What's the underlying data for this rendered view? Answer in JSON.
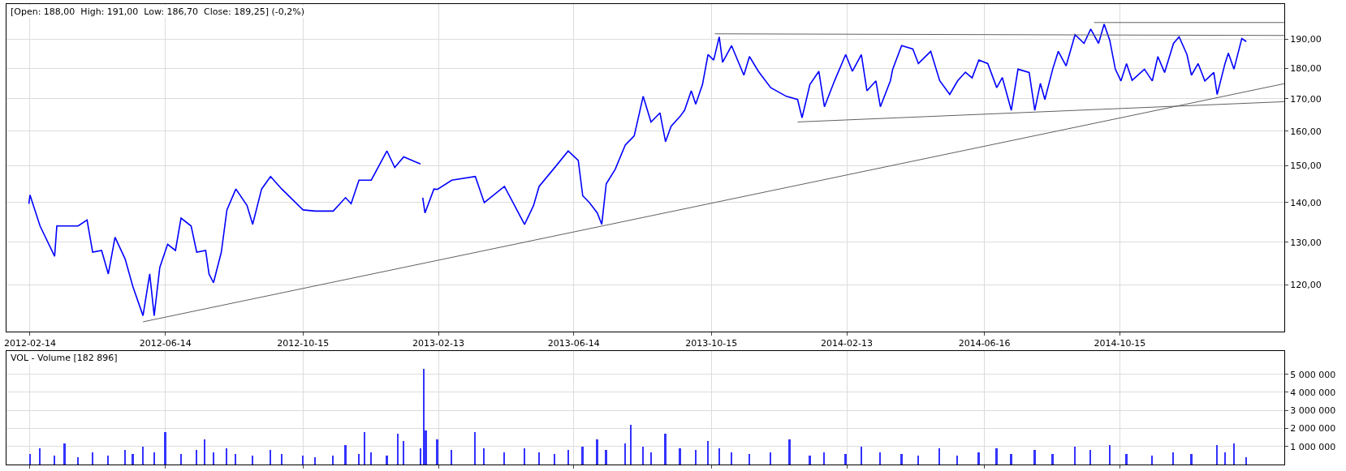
{
  "chart_data": [
    {
      "type": "line",
      "title": "[Open: 188,00  High: 191,00  Low: 186,70  Close: 189,25] (-0,2%)",
      "log": true,
      "grid": true,
      "xlim": [
        "2012-01-24",
        "2015-03-11"
      ],
      "xticks": [
        "2012-02-14",
        "2012-06-14",
        "2012-10-15",
        "2013-02-13",
        "2013-06-14",
        "2013-10-15",
        "2014-02-13",
        "2014-06-16",
        "2014-10-15"
      ],
      "ylim": [
        110,
        203
      ],
      "yticks": [
        {
          "value": 120,
          "label": "120,00"
        },
        {
          "value": 130,
          "label": "130,00"
        },
        {
          "value": 140,
          "label": "140,00"
        },
        {
          "value": 150,
          "label": "150,00"
        },
        {
          "value": 160,
          "label": "160,00"
        },
        {
          "value": 170,
          "label": "170,00"
        },
        {
          "value": 180,
          "label": "180,00"
        },
        {
          "value": 190,
          "label": "190,00"
        }
      ],
      "series": [
        {
          "color": "#0000ff",
          "x": [
            "2012-02-13",
            "2012-02-14",
            "2012-02-23",
            "2012-03-07",
            "2012-03-09",
            "2012-03-28",
            "2012-04-05",
            "2012-04-10",
            "2012-04-18",
            "2012-04-24",
            "2012-04-30",
            "2012-05-09",
            "2012-05-16",
            "2012-05-25",
            "2012-05-31",
            "2012-06-04",
            "2012-06-09",
            "2012-06-16",
            "2012-06-23",
            "2012-06-28",
            "2012-07-07",
            "2012-07-12",
            "2012-07-20",
            "2012-07-23",
            "2012-07-27",
            "2012-08-03",
            "2012-08-08",
            "2012-08-16",
            "2012-08-26",
            "2012-08-31",
            "2012-09-08",
            "2012-09-16",
            "2012-09-26",
            "2012-10-15",
            "2012-10-26",
            "2012-11-11",
            "2012-11-22",
            "2012-11-27",
            "2012-12-04",
            "2012-12-15",
            "2012-12-29",
            "2013-01-05",
            "2013-01-13",
            "2013-01-28",
            "2013-01-29",
            "2013-01-30",
            "2013-02-01",
            "2013-02-09",
            "2013-02-12",
            "2013-02-25",
            "2013-03-18",
            "2013-03-26",
            "2013-04-13",
            "2013-05-01",
            "2013-05-09",
            "2013-05-14",
            "2013-05-28",
            "2013-06-09",
            "2013-06-18",
            "2013-06-22",
            "2013-06-28",
            "2013-07-05",
            "2013-07-09",
            "2013-07-13",
            "2013-07-21",
            "2013-07-30",
            "2013-08-07",
            "2013-08-15",
            "2013-08-22",
            "2013-08-30",
            "2013-09-04",
            "2013-09-09",
            "2013-09-17",
            "2013-09-21",
            "2013-09-27",
            "2013-10-01",
            "2013-10-07",
            "2013-10-12",
            "2013-10-17",
            "2013-10-22",
            "2013-10-25",
            "2013-11-02",
            "2013-11-13",
            "2013-11-18",
            "2013-11-26",
            "2013-12-07",
            "2013-12-21",
            "2013-12-31",
            "2014-01-04",
            "2014-01-11",
            "2014-01-19",
            "2014-01-24",
            "2014-02-02",
            "2014-02-12",
            "2014-02-18",
            "2014-02-26",
            "2014-03-03",
            "2014-03-11",
            "2014-03-15",
            "2014-03-24",
            "2014-03-26",
            "2014-04-03",
            "2014-04-13",
            "2014-04-18",
            "2014-04-29",
            "2014-05-07",
            "2014-05-16",
            "2014-05-23",
            "2014-05-30",
            "2014-06-05",
            "2014-06-11",
            "2014-06-19",
            "2014-06-27",
            "2014-07-02",
            "2014-07-10",
            "2014-07-16",
            "2014-07-26",
            "2014-07-31",
            "2014-08-05",
            "2014-08-09",
            "2014-08-16",
            "2014-08-21",
            "2014-08-28",
            "2014-09-05",
            "2014-09-13",
            "2014-09-19",
            "2014-09-26",
            "2014-10-01",
            "2014-10-06",
            "2014-10-11",
            "2014-10-16",
            "2014-10-21",
            "2014-10-26",
            "2014-11-06",
            "2014-11-13",
            "2014-11-18",
            "2014-11-24",
            "2014-12-02",
            "2014-12-07",
            "2014-12-14",
            "2014-12-18",
            "2014-12-24",
            "2014-12-30",
            "2015-01-07",
            "2015-01-10",
            "2015-01-17",
            "2015-01-20",
            "2015-01-25",
            "2015-02-01",
            "2015-02-05"
          ],
          "values": [
            139.7,
            142,
            134,
            126.6,
            134,
            134,
            135.5,
            127.6,
            128,
            122.5,
            131.2,
            126,
            119.6,
            113.3,
            122.5,
            113.3,
            124,
            129.5,
            128,
            136,
            134,
            127.6,
            128,
            122.5,
            120.5,
            127.6,
            138.1,
            143.6,
            139.2,
            134.4,
            143.6,
            147,
            143.6,
            138.1,
            137.8,
            137.8,
            141.3,
            139.7,
            146,
            146,
            154.2,
            149.5,
            152.5,
            150.5,
            null,
            141.3,
            137.3,
            143.6,
            143.5,
            146,
            147,
            140,
            144.3,
            134.4,
            139.2,
            144.3,
            149.5,
            154.2,
            151.5,
            141.8,
            140,
            137.3,
            134.4,
            145,
            149,
            155.9,
            158.6,
            170.8,
            162.8,
            165.6,
            156.9,
            161.5,
            164.5,
            166.4,
            172.6,
            168.3,
            174.6,
            184.7,
            182.8,
            190.9,
            182,
            187.8,
            177.7,
            184,
            179,
            173.6,
            170.8,
            169.8,
            164.1,
            174.6,
            179,
            167.5,
            175.8,
            184.7,
            179,
            184.7,
            172.6,
            175.8,
            167.5,
            175.9,
            179.7,
            187.8,
            186.6,
            181.6,
            185.8,
            175.9,
            171.4,
            175.8,
            178.7,
            176.8,
            182.8,
            181.6,
            173.6,
            176.9,
            166.4,
            179.7,
            178.6,
            166.4,
            175,
            169.8,
            179.7,
            185.8,
            180.8,
            191.7,
            188.6,
            193.7,
            188.6,
            195.5,
            189.7,
            179.7,
            175.8,
            181.6,
            176,
            179.7,
            175.8,
            184,
            178.6,
            188.6,
            190.9,
            184.7,
            177.7,
            181.6,
            175.8,
            178.6,
            171.4,
            181.6,
            185.2,
            179.7,
            190.3,
            189.25
          ]
        },
        {
          "type": "line",
          "color": "#606060",
          "x": [
            "2012-05-25",
            "2015-03-11"
          ],
          "values": [
            112,
            174.9
          ]
        },
        {
          "type": "line",
          "color": "#606060",
          "x": [
            "2013-10-18",
            "2015-03-11"
          ],
          "values": [
            192,
            191.4
          ]
        },
        {
          "type": "line",
          "color": "#606060",
          "x": [
            "2014-09-22",
            "2015-03-11"
          ],
          "values": [
            196.1,
            196.1
          ]
        },
        {
          "type": "line",
          "color": "#606060",
          "x": [
            "2013-12-31",
            "2015-03-11"
          ],
          "values": [
            162.8,
            169.1
          ]
        }
      ]
    },
    {
      "type": "bar",
      "title": "VOL - Volume [182 896]",
      "grid": true,
      "tick_labels": "y",
      "xlim": [
        "2012-01-24",
        "2015-03-11"
      ],
      "xticks": [
        "2012-02-14",
        "2012-06-14",
        "2012-10-15",
        "2013-02-13",
        "2013-06-14",
        "2013-10-15",
        "2014-02-13",
        "2014-06-16",
        "2014-10-15"
      ],
      "ylim": [
        0,
        6300000
      ],
      "yticks": [
        {
          "value": 1000000,
          "label": "1 000 000"
        },
        {
          "value": 2000000,
          "label": "2 000 000"
        },
        {
          "value": 3000000,
          "label": "3 000 000"
        },
        {
          "value": 4000000,
          "label": "4 000 000"
        },
        {
          "value": 5000000,
          "label": "5 000 000"
        }
      ],
      "series": [
        {
          "color": "#3333ff",
          "x": [
            "2012-02-14",
            "2012-02-23",
            "2012-03-07",
            "2012-03-16",
            "2012-03-28",
            "2012-04-10",
            "2012-04-24",
            "2012-05-09",
            "2012-05-16",
            "2012-05-25",
            "2012-06-04",
            "2012-06-14",
            "2012-06-28",
            "2012-07-12",
            "2012-07-19",
            "2012-07-27",
            "2012-08-08",
            "2012-08-16",
            "2012-08-31",
            "2012-09-16",
            "2012-09-26",
            "2012-10-15",
            "2012-10-26",
            "2012-11-11",
            "2012-11-22",
            "2012-12-04",
            "2012-12-09",
            "2012-12-15",
            "2012-12-29",
            "2013-01-08",
            "2013-01-13",
            "2013-01-28",
            "2013-01-31",
            "2013-02-02",
            "2013-02-12",
            "2013-02-25",
            "2013-03-18",
            "2013-03-26",
            "2013-04-13",
            "2013-05-01",
            "2013-05-14",
            "2013-05-28",
            "2013-06-09",
            "2013-06-22",
            "2013-07-05",
            "2013-07-13",
            "2013-07-30",
            "2013-08-04",
            "2013-08-15",
            "2013-08-22",
            "2013-09-04",
            "2013-09-17",
            "2013-10-01",
            "2013-10-12",
            "2013-10-22",
            "2013-11-02",
            "2013-11-18",
            "2013-12-07",
            "2013-12-24",
            "2014-01-11",
            "2014-01-24",
            "2014-02-12",
            "2014-02-26",
            "2014-03-15",
            "2014-04-03",
            "2014-04-18",
            "2014-05-07",
            "2014-05-23",
            "2014-06-11",
            "2014-06-27",
            "2014-07-10",
            "2014-07-31",
            "2014-08-16",
            "2014-09-05",
            "2014-09-19",
            "2014-10-06",
            "2014-10-21",
            "2014-11-13",
            "2014-12-02",
            "2014-12-18",
            "2015-01-10",
            "2015-01-17",
            "2015-01-25",
            "2015-02-05"
          ],
          "values": [
            600000,
            900000,
            500000,
            1200000,
            400000,
            700000,
            500000,
            800000,
            600000,
            1000000,
            700000,
            1800000,
            600000,
            800000,
            1400000,
            700000,
            900000,
            600000,
            500000,
            800000,
            600000,
            500000,
            400000,
            500000,
            1100000,
            600000,
            1800000,
            700000,
            500000,
            1700000,
            1300000,
            900000,
            5300000,
            1900000,
            1400000,
            800000,
            1800000,
            900000,
            700000,
            900000,
            700000,
            600000,
            800000,
            1000000,
            1400000,
            800000,
            1200000,
            2200000,
            1000000,
            700000,
            1700000,
            900000,
            800000,
            1300000,
            900000,
            700000,
            600000,
            700000,
            1400000,
            500000,
            700000,
            600000,
            1000000,
            700000,
            600000,
            500000,
            900000,
            500000,
            700000,
            900000,
            600000,
            800000,
            600000,
            1000000,
            800000,
            1100000,
            600000,
            500000,
            700000,
            600000,
            1100000,
            700000,
            1200000,
            400000
          ]
        }
      ]
    }
  ]
}
